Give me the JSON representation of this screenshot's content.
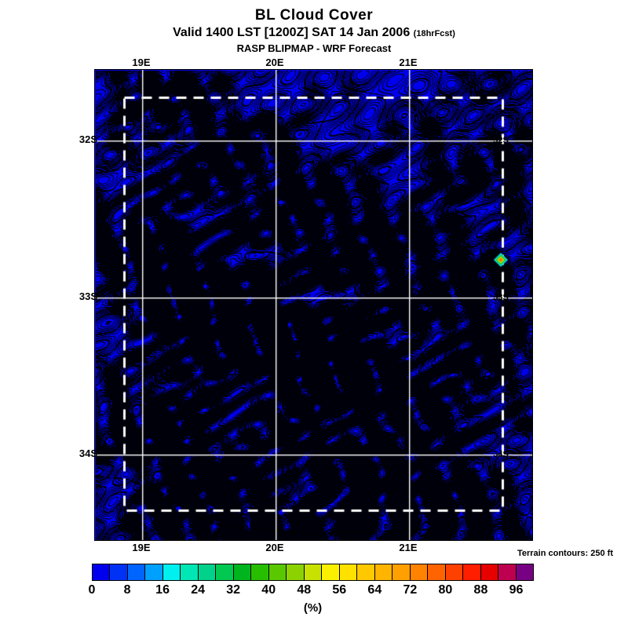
{
  "header": {
    "title": "BL Cloud Cover",
    "subtitle": "Valid 1400 LST [1200Z] SAT 14 Jan 2006",
    "subtitle_note": "(18hrFcst)",
    "model": "RASP BLIPMAP - WRF Forecast"
  },
  "map": {
    "x_tick_labels": [
      "19E",
      "20E",
      "21E"
    ],
    "y_tick_labels": [
      "32S",
      "33S",
      "34S"
    ],
    "terrain_note": "Terrain contours: 250 ft",
    "colors": {
      "field_fill": "#0000EE",
      "contour": "#000000",
      "gridline": "#FFFFFF",
      "domain_box": "#FFFFFF",
      "marker_rings": [
        "#00DCDC",
        "#28C828",
        "#C8DC00",
        "#FF6400"
      ]
    }
  },
  "colorbar": {
    "unit_label": "(%)",
    "tick_labels": [
      "0",
      "8",
      "16",
      "24",
      "32",
      "40",
      "48",
      "56",
      "64",
      "72",
      "80",
      "88",
      "96"
    ],
    "cell_colors": [
      "#0000EE",
      "#0032F5",
      "#0064FF",
      "#00A0FF",
      "#00F0F0",
      "#00E6B4",
      "#00D28C",
      "#00C850",
      "#00B41E",
      "#28BE00",
      "#5AC800",
      "#8CD200",
      "#C8E100",
      "#FAF000",
      "#FFE100",
      "#FFC800",
      "#FFB400",
      "#FFA000",
      "#FF8200",
      "#FF6400",
      "#FF4100",
      "#FF1E00",
      "#E60000",
      "#BE0050",
      "#780082"
    ]
  },
  "chart_data": {
    "type": "heatmap",
    "title": "BL Cloud Cover",
    "subtitle": "Valid 1400 LST [1200Z] SAT 14 Jan 2006 (18hrFcst)",
    "model_line": "RASP BLIPMAP - WRF Forecast",
    "x_tick_labels": [
      "19E",
      "20E",
      "21E"
    ],
    "y_tick_labels": [
      "32S",
      "33S",
      "34S"
    ],
    "colorbar_units": "(%)",
    "colorbar_tick_values": [
      0,
      8,
      16,
      24,
      32,
      40,
      48,
      56,
      64,
      72,
      80,
      88,
      96
    ],
    "colorbar_cell_width_percent": 4,
    "colorbar_range": [
      0,
      100
    ],
    "field_summary": "BL cloud cover is in the lowest bin (~0%, solid blue) over the entire domain except one small multicolour patch (values rising to ~60-70%) near 21.7E 32.8S on the dashed domain boundary",
    "overlays": [
      "terrain contours every 250 ft (black)",
      "latitude/longitude gridlines at 19E/20E/21E and 32S/33S/34S (white)",
      "inner model domain box (white dashed)"
    ],
    "legend_note": "Terrain contours: 250 ft"
  }
}
